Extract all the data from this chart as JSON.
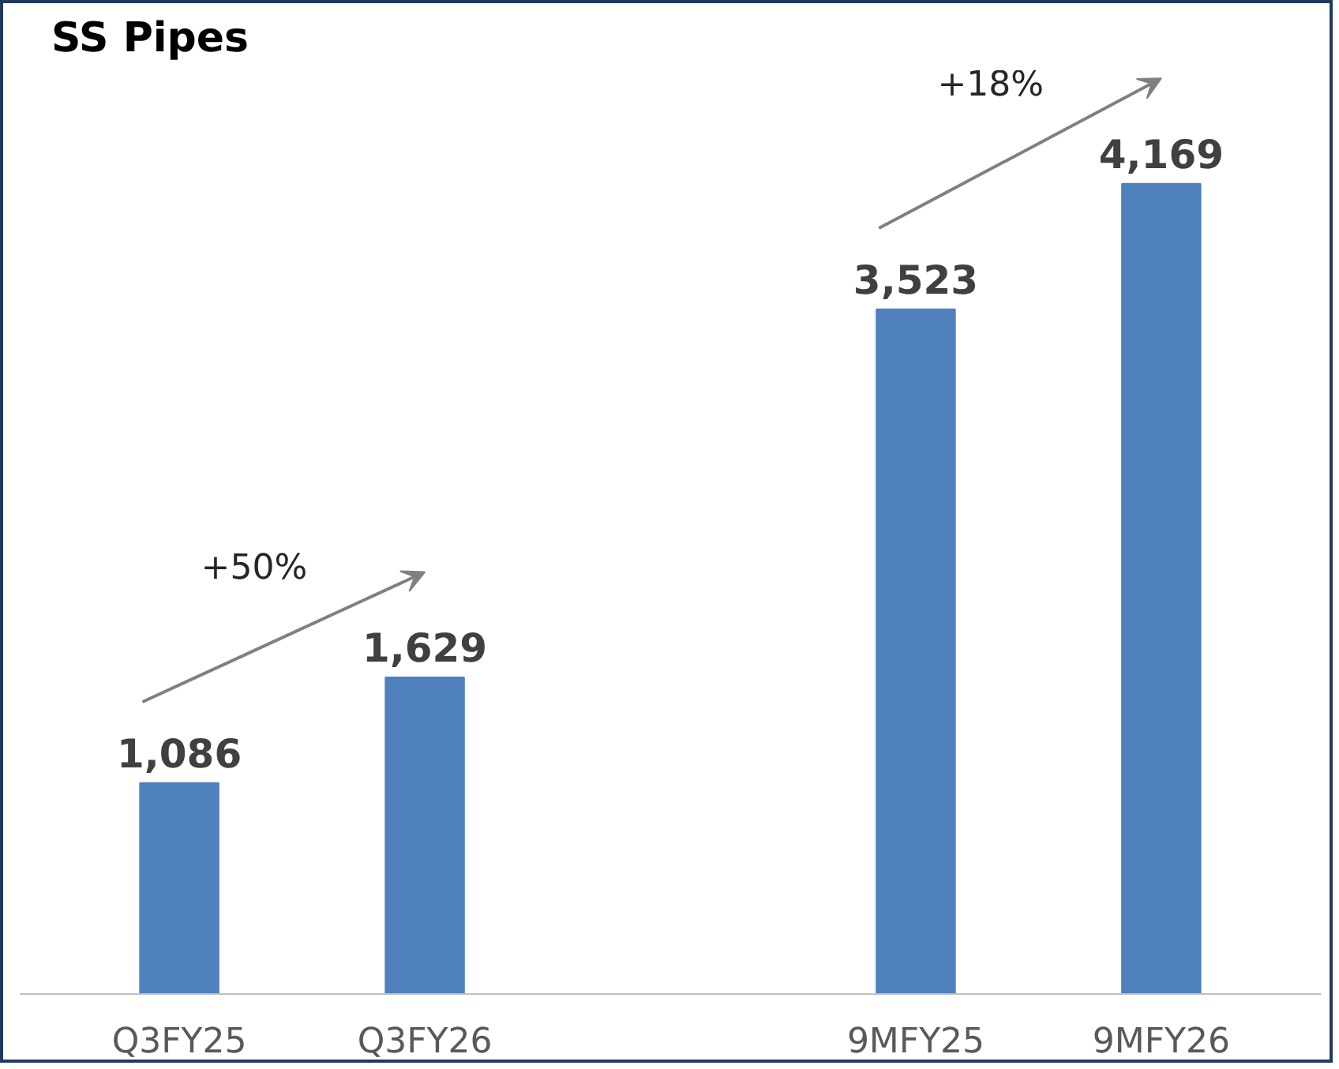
{
  "chart_data": {
    "type": "bar",
    "title": "SS Pipes",
    "categories": [
      "Q3FY25",
      "Q3FY26",
      null,
      "9MFY25",
      "9MFY26"
    ],
    "values": [
      1086,
      1629,
      null,
      3523,
      4169
    ],
    "value_labels": [
      "1,086",
      "1,629",
      null,
      "3,523",
      "4,169"
    ],
    "color": "#4f81bd",
    "annotations": [
      "+50%",
      "+18%"
    ]
  }
}
